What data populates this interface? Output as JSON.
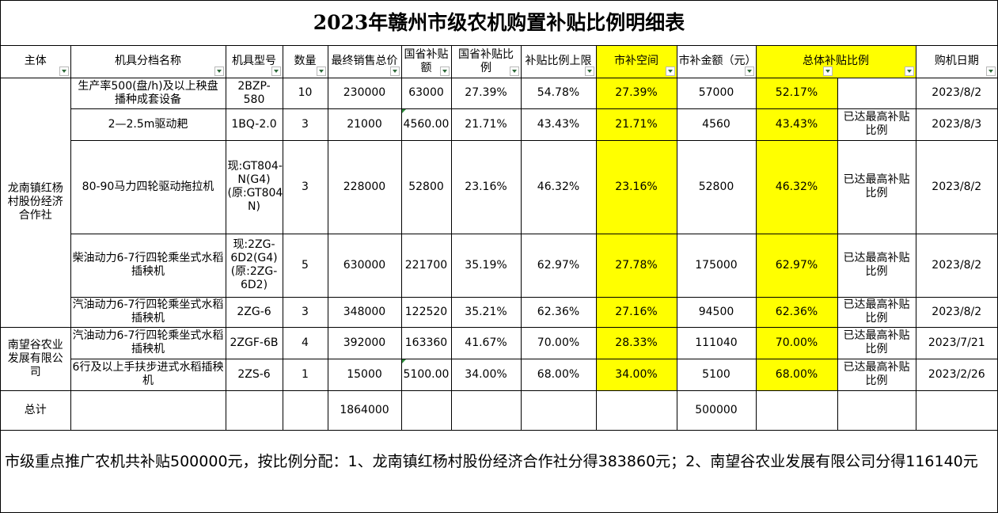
{
  "title": "2023年赣州市级农机购置补贴比例明细表",
  "columns": [
    "主体",
    "机具分档名称",
    "机具型号",
    "数量",
    "最终销售总价",
    "国省补贴额",
    "国省补贴比例",
    "补贴比例上限",
    "市补空间",
    "市补金额（元）",
    "总体补贴比例",
    "",
    "购机日期"
  ],
  "groups": [
    "龙南镇红杨村股份经济合作社",
    "南望谷农业发展有限公司"
  ],
  "rows": [
    {
      "name": "生产率500(盘/h)及以上秧盘播种成套设备",
      "model": "2BZP-580",
      "qty": "10",
      "price": "230000",
      "gs_amount": "63000",
      "gs_ratio": "27.39%",
      "cap": "54.78%",
      "space": "27.39%",
      "city_amount": "57000",
      "total_ratio": "52.17%",
      "note": "",
      "date": "2023/8/2"
    },
    {
      "name": "2—2.5m驱动耙",
      "model": "1BQ-2.0",
      "qty": "3",
      "price": "21000",
      "gs_amount": "4560.00",
      "gs_ratio": "21.71%",
      "cap": "43.43%",
      "space": "21.71%",
      "city_amount": "4560",
      "total_ratio": "43.43%",
      "note": "已达最高补贴比例",
      "date": "2023/8/3"
    },
    {
      "name": "80-90马力四轮驱动拖拉机",
      "model": "现:GT804-N(G4)(原:GT804-N)",
      "qty": "3",
      "price": "228000",
      "gs_amount": "52800",
      "gs_ratio": "23.16%",
      "cap": "46.32%",
      "space": "23.16%",
      "city_amount": "52800",
      "total_ratio": "46.32%",
      "note": "已达最高补贴比例",
      "date": "2023/8/2"
    },
    {
      "name": "柴油动力6-7行四轮乘坐式水稻插秧机",
      "model": "现:2ZG-6D2(G4)(原:2ZG-6D2)",
      "qty": "5",
      "price": "630000",
      "gs_amount": "221700",
      "gs_ratio": "35.19%",
      "cap": "62.97%",
      "space": "27.78%",
      "city_amount": "175000",
      "total_ratio": "62.97%",
      "note": "已达最高补贴比例",
      "date": "2023/8/2"
    },
    {
      "name": "汽油动力6-7行四轮乘坐式水稻插秧机",
      "model": "2ZG-6",
      "qty": "3",
      "price": "348000",
      "gs_amount": "122520",
      "gs_ratio": "35.21%",
      "cap": "62.36%",
      "space": "27.16%",
      "city_amount": "94500",
      "total_ratio": "62.36%",
      "note": "已达最高补贴比例",
      "date": "2023/8/2"
    },
    {
      "name": "汽油动力6-7行四轮乘坐式水稻插秧机",
      "model": "2ZGF-6B",
      "qty": "4",
      "price": "392000",
      "gs_amount": "163360",
      "gs_ratio": "41.67%",
      "cap": "70.00%",
      "space": "28.33%",
      "city_amount": "111040",
      "total_ratio": "70.00%",
      "note": "已达最高补贴比例",
      "date": "2023/7/21"
    },
    {
      "name": "6行及以上手扶步进式水稻插秧机",
      "model": "2ZS-6",
      "qty": "1",
      "price": "15000",
      "gs_amount": "5100.00",
      "gs_ratio": "34.00%",
      "cap": "68.00%",
      "space": "34.00%",
      "city_amount": "5100",
      "total_ratio": "68.00%",
      "note": "已达最高补贴比例",
      "date": "2023/2/26"
    }
  ],
  "total": {
    "label": "总计",
    "price": "1864000",
    "city_amount": "500000"
  },
  "footnote": "市级重点推广农机共补贴500000元，按比例分配：1、龙南镇红杨村股份经济合作社分得383860元；2、南望谷农业发展有限公司分得116140元",
  "colors": {
    "highlight": "#ffff00",
    "filter_arrow": "#2d6a3a",
    "cell_marker": "#2e8b3c"
  },
  "icons": [
    "filter-dropdown-icon"
  ]
}
